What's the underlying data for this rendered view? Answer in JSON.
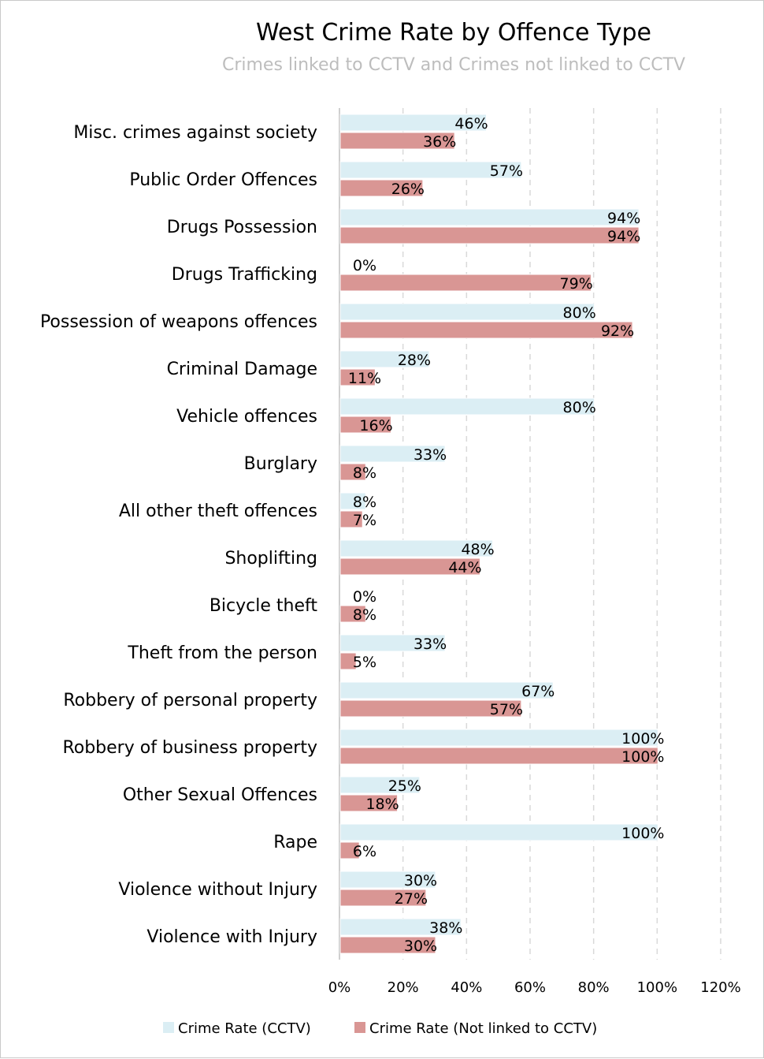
{
  "chart_data": {
    "type": "bar",
    "orientation": "horizontal",
    "title": "West Crime Rate by Offence Type",
    "subtitle": "Crimes linked to CCTV and Crimes not linked to CCTV",
    "categories": [
      "Misc. crimes against society",
      "Public Order Offences",
      "Drugs Possession",
      "Drugs Trafficking",
      "Possession of weapons offences",
      "Criminal Damage",
      "Vehicle offences",
      "Burglary",
      "All other theft offences",
      "Shoplifting",
      "Bicycle theft",
      "Theft from the person",
      "Robbery of personal property",
      "Robbery of business property",
      "Other Sexual Offences",
      "Rape",
      "Violence without Injury",
      "Violence with Injury"
    ],
    "series": [
      {
        "name": "Crime Rate (CCTV)",
        "color": "#dbeef4",
        "values": [
          46,
          57,
          94,
          0,
          80,
          28,
          80,
          33,
          8,
          48,
          0,
          33,
          67,
          100,
          25,
          100,
          30,
          38
        ],
        "labels": [
          "46%",
          "57%",
          "94%",
          "0%",
          "80%",
          "28%",
          "80%",
          "33%",
          "8%",
          "48%",
          "0%",
          "33%",
          "67%",
          "100%",
          "25%",
          "100%",
          "30%",
          "38%"
        ]
      },
      {
        "name": "Crime Rate (Not linked to CCTV)",
        "color": "#d99694",
        "values": [
          36,
          26,
          94,
          79,
          92,
          11,
          16,
          8,
          7,
          44,
          8,
          5,
          57,
          100,
          18,
          6,
          27,
          30
        ],
        "labels": [
          "36%",
          "26%",
          "94%",
          "79%",
          "92%",
          "11%",
          "16%",
          "8%",
          "7%",
          "44%",
          "8%",
          "5%",
          "57%",
          "100%",
          "18%",
          "6%",
          "27%",
          "30%"
        ]
      }
    ],
    "xlim": [
      0,
      120
    ],
    "xticks": [
      "0%",
      "20%",
      "40%",
      "60%",
      "80%",
      "100%",
      "120%"
    ],
    "grid": "vertical dashed",
    "legend": "bottom"
  }
}
